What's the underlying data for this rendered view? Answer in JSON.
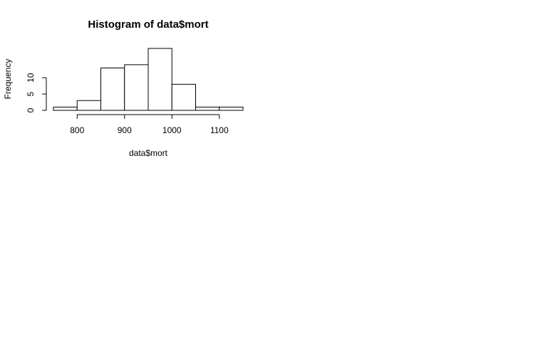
{
  "chart_data": {
    "type": "bar",
    "title": "Histogram of data$mort",
    "xlabel": "data$mort",
    "ylabel": "Frequency",
    "bins": [
      {
        "from": 750,
        "to": 800,
        "count": 1
      },
      {
        "from": 800,
        "to": 850,
        "count": 3
      },
      {
        "from": 850,
        "to": 900,
        "count": 13
      },
      {
        "from": 900,
        "to": 950,
        "count": 14
      },
      {
        "from": 950,
        "to": 1000,
        "count": 19
      },
      {
        "from": 1000,
        "to": 1050,
        "count": 8
      },
      {
        "from": 1050,
        "to": 1100,
        "count": 1
      },
      {
        "from": 1100,
        "to": 1150,
        "count": 1
      }
    ],
    "x_ticks": [
      800,
      900,
      1000,
      1100
    ],
    "y_ticks": [
      0,
      5,
      10
    ],
    "xlim": [
      750,
      1150
    ],
    "ylim": [
      0,
      19
    ],
    "grid": false,
    "legend": "none",
    "bar_fill": "#ffffff",
    "bar_stroke": "#000000"
  }
}
